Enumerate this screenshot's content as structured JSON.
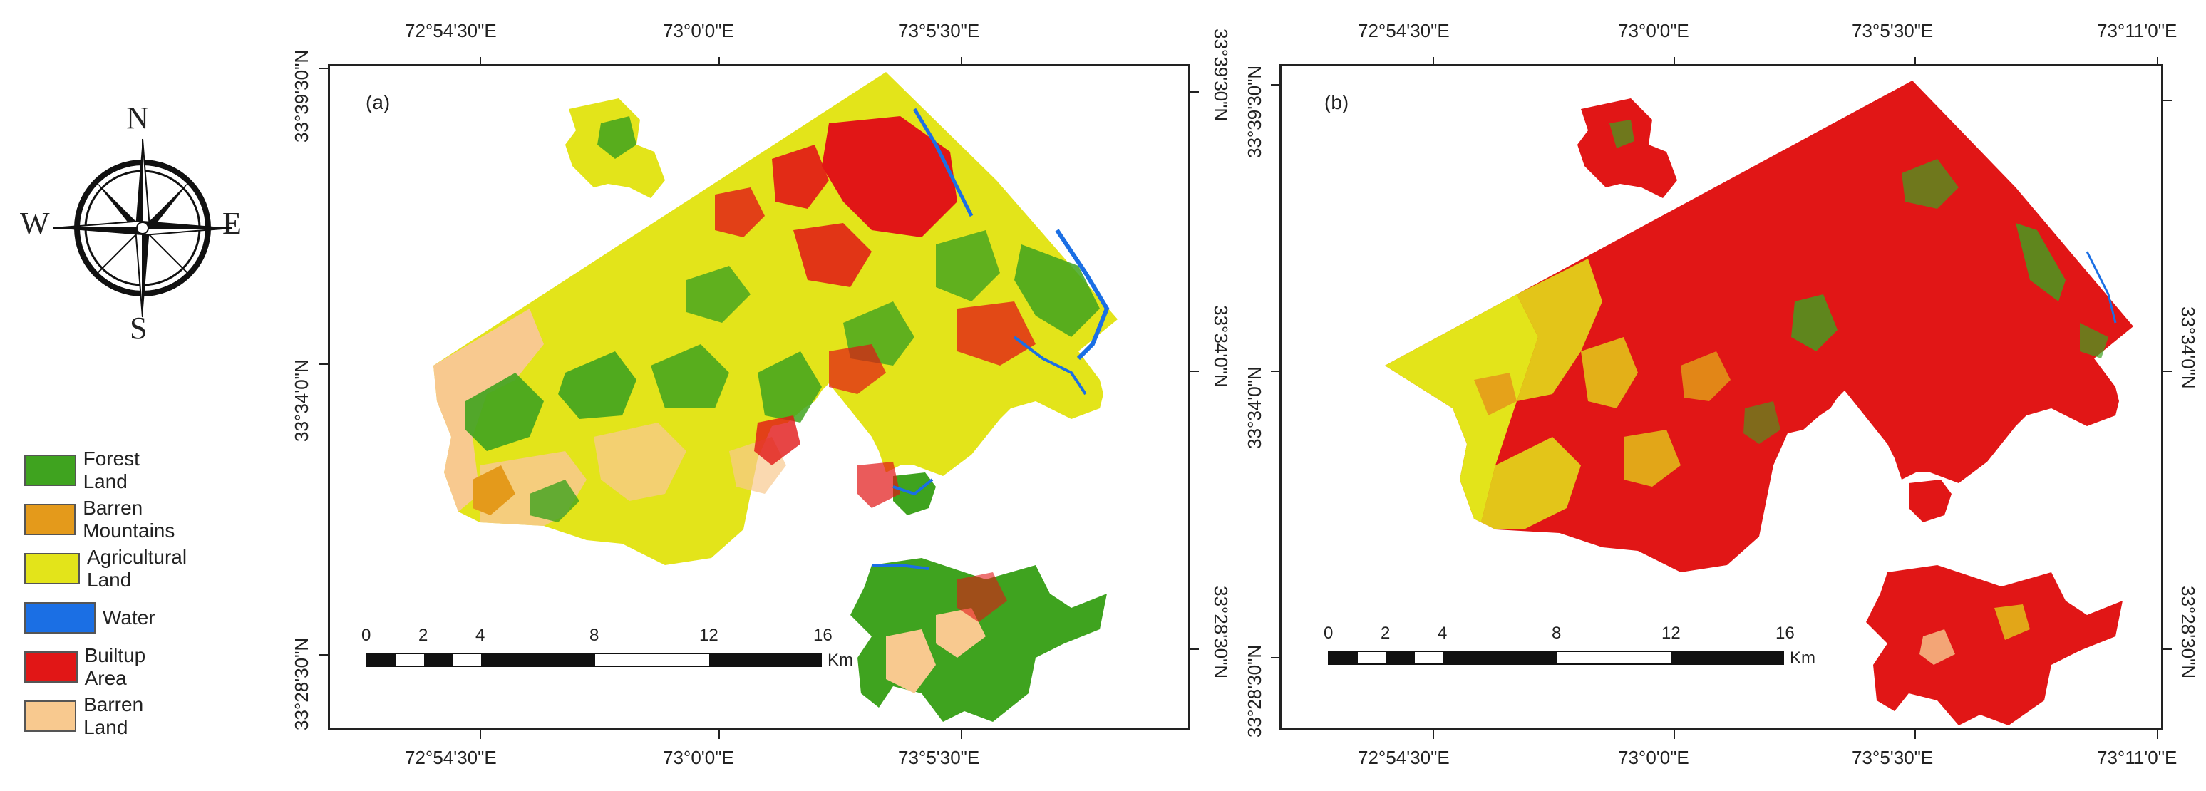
{
  "colors": {
    "forest": "#3fa31f",
    "barren_mountains": "#e49a1b",
    "agricultural": "#e3e41a",
    "water": "#1b6fe4",
    "builtup": "#e11616",
    "barren_land": "#f8c98f"
  },
  "compass": {
    "n": "N",
    "s": "S",
    "e": "E",
    "w": "W",
    "icon": "compass-rose-icon"
  },
  "legend": [
    {
      "label": "Forest Land",
      "color": "#3fa31f"
    },
    {
      "label": "Barren Mountains",
      "color": "#e49a1b"
    },
    {
      "label": "Agricultural Land",
      "color": "#e3e41a"
    },
    {
      "label": "Water",
      "color": "#1b6fe4"
    },
    {
      "label": "Builtup Area",
      "color": "#e11616"
    },
    {
      "label": "Barren Land",
      "color": "#f8c98f"
    }
  ],
  "panel_a": {
    "label": "(a)",
    "top_ticks": [
      "72°54'30\"E",
      "73°0'0\"E",
      "73°5'30\"E"
    ],
    "bottom_ticks": [
      "72°54'30\"E",
      "73°0'0\"E",
      "73°5'30\"E"
    ],
    "left_ticks": [
      "33°39'30\"N",
      "33°34'0\"N",
      "33°28'30\"N"
    ],
    "right_ticks": [
      "33°39'30\"N",
      "33°34'0\"N",
      "33°28'30\"N"
    ],
    "scale": {
      "labels": [
        "0",
        "2",
        "4",
        "8",
        "12",
        "16"
      ],
      "unit": "Km"
    }
  },
  "panel_b": {
    "label": "(b)",
    "top_ticks": [
      "72°54'30\"E",
      "73°0'0\"E",
      "73°5'30\"E",
      "73°11'0\"E"
    ],
    "bottom_ticks": [
      "72°54'30\"E",
      "73°0'0\"E",
      "73°5'30\"E",
      "73°11'0\"E"
    ],
    "left_ticks": [
      "33°39'30\"N",
      "33°34'0\"N",
      "33°28'30\"N"
    ],
    "right_ticks": [
      "33°34'0\"N",
      "33°28'30\"N"
    ],
    "scale": {
      "labels": [
        "0",
        "2",
        "4",
        "8",
        "12",
        "16"
      ],
      "unit": "Km"
    }
  }
}
